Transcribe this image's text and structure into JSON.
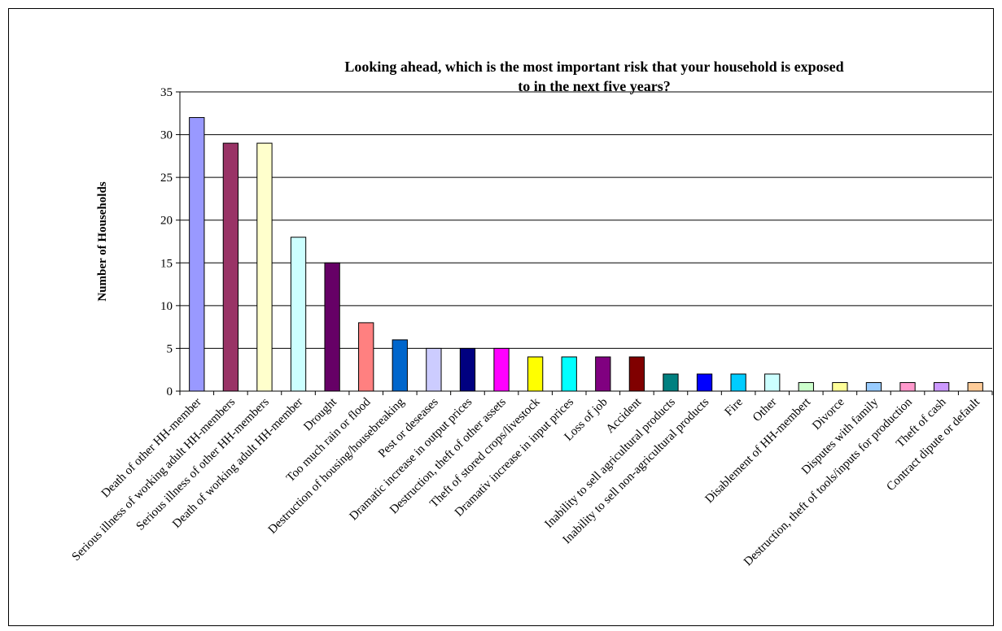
{
  "chart_data": {
    "type": "bar",
    "title": "Looking ahead, which is the most important risk that your household is exposed\nto in the next five years?",
    "xlabel": "",
    "ylabel": "Number of Households",
    "ylim": [
      0,
      35
    ],
    "yticks": [
      0,
      5,
      10,
      15,
      20,
      25,
      30,
      35
    ],
    "grid": true,
    "legend": false,
    "categories": [
      "Death of other HH-member",
      "Serious illness of working adult HH-members",
      "Serious illness of other HH-members",
      "Death of working adult HH-member",
      "Drought",
      "Too much rain or flood",
      "Destruction of housing/housebreaking",
      "Pest or deseases",
      "Dramatic increase in output prices",
      "Destruction, theft of other assets",
      "Theft of stored crops/livestock",
      "Dramativ increase in input prices",
      "Loss of job",
      "Accident",
      "Inability to sell agricultural products",
      "Inability to sell non-agricultural products",
      "Fire",
      "Other",
      "Disablement of HH-membert",
      "Divorce",
      "Disputes with family",
      "Destruction, theft of tools/inputs for production",
      "Theft of cash",
      "Contract dipute or default"
    ],
    "values": [
      32,
      29,
      29,
      18,
      15,
      8,
      6,
      5,
      5,
      5,
      4,
      4,
      4,
      4,
      2,
      2,
      2,
      2,
      1,
      1,
      1,
      1,
      1,
      1
    ],
    "colors": [
      "#9999ff",
      "#993366",
      "#ffffcc",
      "#ccffff",
      "#660066",
      "#ff8080",
      "#0066cc",
      "#ccccff",
      "#000080",
      "#ff00ff",
      "#ffff00",
      "#00ffff",
      "#800080",
      "#800000",
      "#008080",
      "#0000ff",
      "#00ccff",
      "#ccffff",
      "#ccffcc",
      "#ffff99",
      "#99ccff",
      "#ff99cc",
      "#cc99ff",
      "#ffcc99"
    ]
  }
}
